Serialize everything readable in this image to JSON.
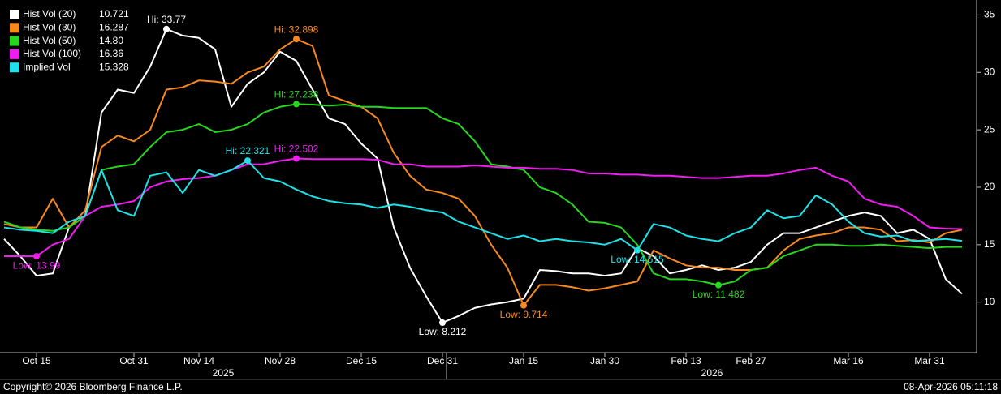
{
  "chart_data": {
    "type": "line",
    "categories": [
      null,
      null,
      "Oct 15",
      null,
      null,
      null,
      null,
      null,
      "Oct 31",
      null,
      null,
      null,
      "Nov 14",
      null,
      null,
      null,
      null,
      "Nov 28",
      null,
      null,
      null,
      null,
      "Dec 15",
      null,
      null,
      null,
      null,
      "Dec 31",
      null,
      null,
      null,
      null,
      "Jan 15",
      null,
      null,
      null,
      null,
      "Jan 30",
      null,
      null,
      null,
      null,
      "Feb 13",
      null,
      null,
      null,
      "Feb 27",
      null,
      null,
      null,
      null,
      null,
      "Mar 16",
      null,
      null,
      null,
      null,
      "Mar 31",
      null,
      null
    ],
    "year_labels": [
      "2025",
      "2026"
    ],
    "ylim": [
      5.6,
      36.3
    ],
    "yticks": [
      10,
      15,
      20,
      25,
      30,
      35
    ],
    "grid": false,
    "series": [
      {
        "name": "Hist Vol (20)",
        "legend_value": "10.721",
        "color": "#ffffff",
        "high_label": "Hi: 33.77",
        "low_label": "Low: 8.212",
        "values": [
          15.5,
          14.0,
          12.3,
          12.5,
          16.5,
          17.5,
          26.5,
          28.5,
          28.2,
          30.5,
          33.77,
          33.2,
          33.0,
          32.0,
          27.0,
          29.0,
          30.0,
          31.8,
          31.0,
          28.5,
          26.0,
          25.5,
          23.8,
          22.5,
          16.5,
          13.0,
          10.5,
          8.212,
          8.8,
          9.5,
          9.8,
          10.0,
          10.3,
          12.8,
          12.7,
          12.5,
          12.5,
          12.3,
          12.5,
          14.7,
          14.0,
          12.5,
          12.8,
          13.2,
          12.8,
          13.0,
          13.5,
          15.0,
          16.0,
          16.0,
          16.5,
          17.0,
          17.5,
          17.8,
          17.5,
          16.0,
          16.3,
          15.5,
          12.0,
          10.721
        ]
      },
      {
        "name": "Hist Vol (30)",
        "legend_value": "16.287",
        "color": "#f7891f",
        "high_label": "Hi: 32.898",
        "low_label": "Low: 9.714",
        "values": [
          16.8,
          16.5,
          16.5,
          19.0,
          16.5,
          18.0,
          23.5,
          24.5,
          24.0,
          25.0,
          28.5,
          28.7,
          29.3,
          29.2,
          29.0,
          30.0,
          30.5,
          32.0,
          32.898,
          32.3,
          28.0,
          27.5,
          27.0,
          26.0,
          23.0,
          21.0,
          19.8,
          19.5,
          19.0,
          17.5,
          15.0,
          13.0,
          9.714,
          11.5,
          11.5,
          11.3,
          11.0,
          11.2,
          11.5,
          11.8,
          14.5,
          13.8,
          13.2,
          13.0,
          13.0,
          12.8,
          12.8,
          13.0,
          14.5,
          15.5,
          15.8,
          16.0,
          16.5,
          16.5,
          16.3,
          15.3,
          15.4,
          15.2,
          16.0,
          16.287
        ]
      },
      {
        "name": "Hist Vol (50)",
        "legend_value": "14.80",
        "color": "#27d61e",
        "high_label": "Hi: 27.238",
        "low_label": "Low: 11.482",
        "values": [
          17.0,
          16.5,
          16.3,
          16.2,
          16.5,
          17.5,
          21.5,
          21.8,
          22.0,
          23.5,
          24.8,
          25.0,
          25.5,
          24.8,
          25.0,
          25.5,
          26.5,
          27.0,
          27.238,
          27.2,
          27.1,
          27.2,
          27.0,
          27.0,
          26.9,
          26.9,
          26.9,
          26.0,
          25.5,
          24.0,
          22.0,
          21.8,
          21.5,
          20.0,
          19.5,
          18.5,
          17.0,
          16.9,
          16.5,
          15.0,
          12.5,
          12.0,
          12.0,
          11.8,
          11.482,
          11.8,
          12.8,
          13.0,
          14.0,
          14.5,
          15.0,
          15.0,
          14.9,
          14.9,
          15.0,
          14.9,
          14.8,
          14.7,
          14.8,
          14.8
        ]
      },
      {
        "name": "Hist Vol (100)",
        "legend_value": "16.36",
        "color": "#f01df0",
        "high_label": "Hi: 22.502",
        "low_label": "Low: 13.99",
        "values": [
          14.0,
          14.0,
          13.99,
          15.0,
          15.5,
          17.5,
          18.3,
          18.5,
          18.8,
          20.0,
          20.5,
          20.7,
          20.8,
          21.0,
          21.5,
          22.0,
          22.0,
          22.3,
          22.502,
          22.45,
          22.45,
          22.45,
          22.45,
          22.4,
          22.0,
          22.0,
          21.8,
          21.8,
          21.8,
          21.9,
          21.8,
          21.7,
          21.7,
          21.6,
          21.6,
          21.5,
          21.2,
          21.2,
          21.1,
          21.1,
          21.0,
          21.0,
          20.9,
          20.8,
          20.8,
          20.9,
          21.0,
          21.0,
          21.2,
          21.5,
          21.7,
          21.0,
          20.5,
          19.0,
          18.5,
          18.3,
          17.5,
          16.5,
          16.4,
          16.36
        ]
      },
      {
        "name": "Implied Vol",
        "legend_value": "15.328",
        "color": "#1de2e8",
        "high_label": "Hi: 22.321",
        "low_label": "Low: 14.515",
        "values": [
          16.5,
          16.3,
          16.2,
          16.0,
          17.0,
          17.5,
          21.5,
          18.0,
          17.5,
          21.0,
          21.3,
          19.5,
          21.5,
          21.0,
          21.5,
          22.321,
          20.8,
          20.5,
          19.8,
          19.2,
          18.8,
          18.6,
          18.5,
          18.2,
          18.5,
          18.3,
          18.0,
          17.8,
          17.0,
          16.5,
          16.0,
          15.5,
          15.8,
          15.3,
          15.5,
          15.3,
          15.2,
          15.0,
          15.5,
          14.515,
          16.8,
          16.5,
          15.8,
          15.5,
          15.3,
          16.0,
          16.5,
          18.0,
          17.3,
          17.5,
          19.3,
          18.5,
          17.0,
          16.0,
          15.7,
          15.8,
          15.3,
          15.4,
          15.5,
          15.328
        ]
      }
    ],
    "source": "Copyright© 2026 Bloomberg Finance L.P.",
    "timestamp": "08-Apr-2026 05:11:18"
  }
}
